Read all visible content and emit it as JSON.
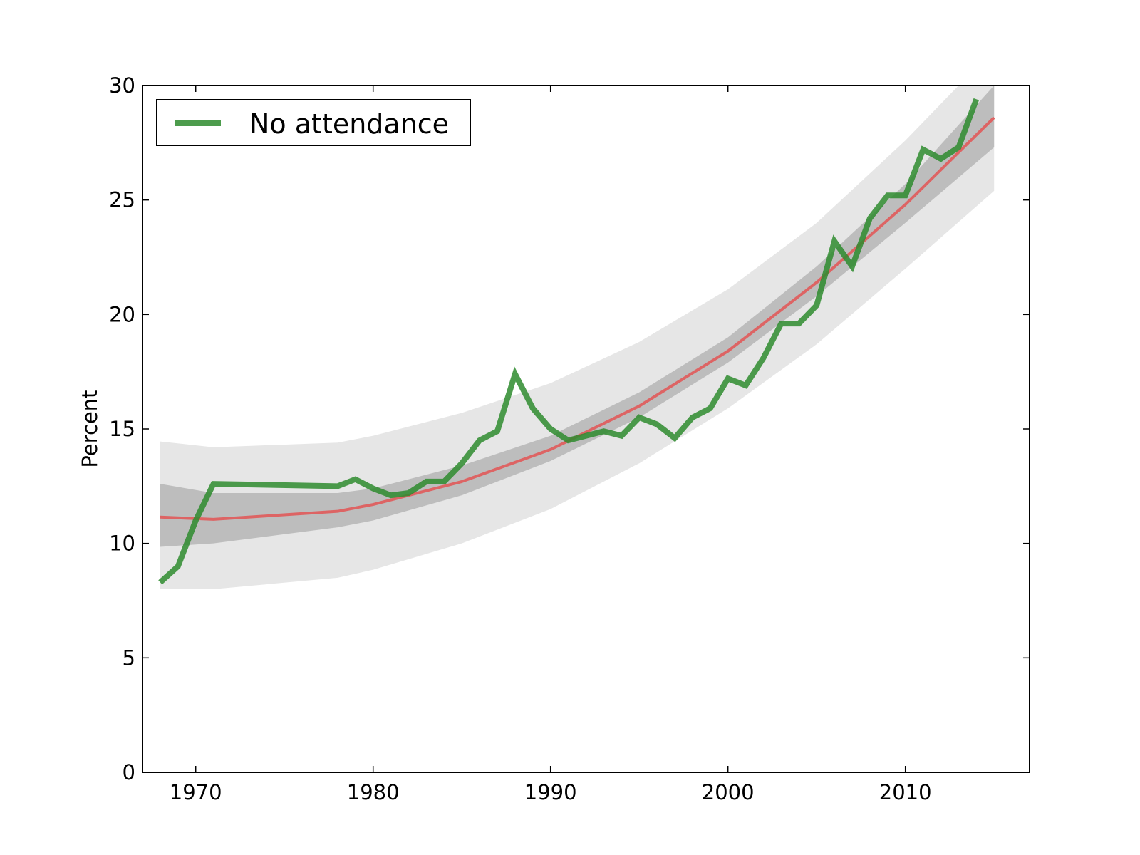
{
  "chart_data": {
    "type": "line",
    "title": "",
    "xlabel": "",
    "ylabel": "Percent",
    "xlim": [
      1967,
      2017
    ],
    "ylim": [
      0,
      30
    ],
    "xticks": [
      1970,
      1980,
      1990,
      2000,
      2010
    ],
    "yticks": [
      0,
      5,
      10,
      15,
      20,
      25,
      30
    ],
    "grid": false,
    "legend": {
      "position": "top-left",
      "entries": [
        "No attendance"
      ]
    },
    "colors": {
      "observed": "#2e8b2e",
      "fitted": "#e05a5a",
      "inner_band": "#bdbdbd",
      "outer_band": "#e6e6e6"
    },
    "series": [
      {
        "name": "No attendance",
        "x": [
          1968,
          1969,
          1970,
          1971,
          1978,
          1979,
          1980,
          1981,
          1982,
          1983,
          1984,
          1985,
          1986,
          1987,
          1988,
          1989,
          1990,
          1991,
          1993,
          1994,
          1995,
          1996,
          1997,
          1998,
          1999,
          2000,
          2001,
          2002,
          2003,
          2004,
          2005,
          2006,
          2007,
          2008,
          2009,
          2010,
          2011,
          2012,
          2013,
          2014
        ],
        "values": [
          8.3,
          9.0,
          11.0,
          12.6,
          12.5,
          12.8,
          12.4,
          12.1,
          12.2,
          12.7,
          12.7,
          13.5,
          14.5,
          14.9,
          17.4,
          15.9,
          15.0,
          14.5,
          14.9,
          14.7,
          15.5,
          15.2,
          14.6,
          15.5,
          15.9,
          17.2,
          16.9,
          18.1,
          19.6,
          19.6,
          20.4,
          23.2,
          22.1,
          24.2,
          25.2,
          25.2,
          27.2,
          26.8,
          27.3,
          29.4
        ]
      },
      {
        "name": "",
        "role": "fitted trend",
        "x": [
          1968,
          1971,
          1978,
          1980,
          1985,
          1990,
          1995,
          2000,
          2005,
          2010,
          2015
        ],
        "values": [
          11.15,
          11.05,
          11.4,
          11.7,
          12.7,
          14.1,
          16.0,
          18.4,
          21.4,
          24.8,
          28.6
        ]
      }
    ],
    "bands": [
      {
        "role": "inner interval",
        "x": [
          1968,
          1971,
          1978,
          1980,
          1985,
          1990,
          1995,
          2000,
          2005,
          2010,
          2015
        ],
        "lower": [
          9.85,
          10.0,
          10.7,
          11.0,
          12.1,
          13.6,
          15.5,
          17.9,
          20.8,
          24.0,
          27.3
        ],
        "upper": [
          12.6,
          12.2,
          12.2,
          12.4,
          13.4,
          14.7,
          16.6,
          19.0,
          22.1,
          25.7,
          30.0
        ]
      },
      {
        "role": "outer interval",
        "x": [
          1968,
          1971,
          1978,
          1980,
          1985,
          1990,
          1995,
          2000,
          2005,
          2010,
          2015
        ],
        "lower": [
          8.0,
          8.0,
          8.5,
          8.85,
          10.0,
          11.5,
          13.5,
          15.9,
          18.7,
          22.0,
          25.4
        ],
        "upper": [
          14.45,
          14.2,
          14.4,
          14.7,
          15.7,
          17.0,
          18.8,
          21.1,
          24.0,
          27.6,
          31.6
        ]
      }
    ]
  }
}
